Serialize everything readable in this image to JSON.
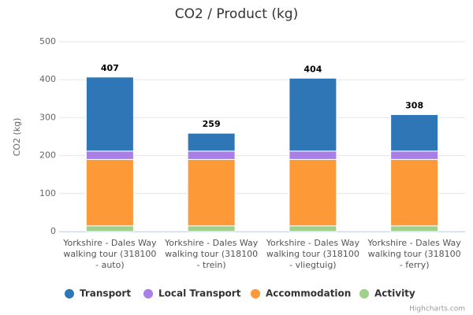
{
  "chart_data": {
    "type": "stacked_bar",
    "title": "CO2 / Product (kg)",
    "y_label": "CO2 (kg)",
    "categories": [
      "Yorkshire - Dales Way walking tour (318100 - auto)",
      "Yorkshire - Dales Way walking tour (318100 - trein)",
      "Yorkshire - Dales Way walking tour (318100 - vliegtuig)",
      "Yorkshire - Dales Way walking tour (318100 - ferry)"
    ],
    "series": [
      {
        "name": "Transport",
        "color": "#2f76b7",
        "values": [
          195,
          47,
          192,
          96
        ]
      },
      {
        "name": "Local Transport",
        "color": "#a97ee6",
        "values": [
          22,
          22,
          22,
          22
        ]
      },
      {
        "name": "Accommodation",
        "color": "#fd9a37",
        "values": [
          175,
          175,
          175,
          175
        ]
      },
      {
        "name": "Activity",
        "color": "#9fd08c",
        "values": [
          15,
          15,
          15,
          15
        ]
      }
    ],
    "stack_totals": [
      407,
      259,
      404,
      308
    ],
    "ylim": [
      0,
      500
    ],
    "yticks": [
      0,
      100,
      200,
      300,
      400,
      500
    ],
    "grid": true,
    "credits": "Highcharts.com"
  }
}
